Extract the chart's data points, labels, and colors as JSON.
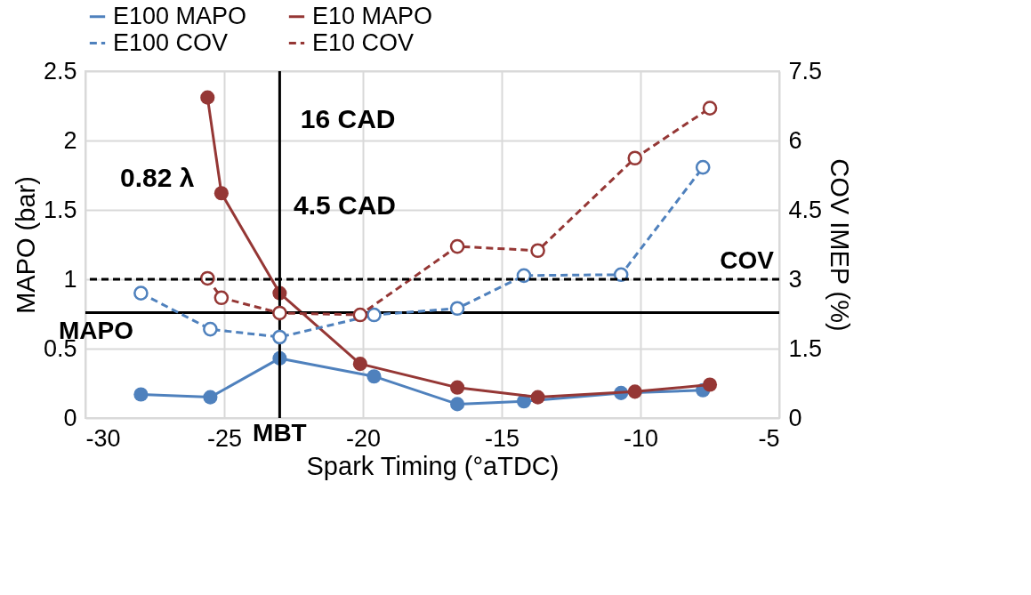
{
  "chart_data": {
    "type": "line",
    "xlabel": "Spark Timing (°aTDC)",
    "ylabel": "MAPO (bar)",
    "y2label": "COV IMEP  (%)",
    "xlim": [
      -30,
      -5
    ],
    "xticks": [
      -30,
      -25,
      -20,
      -15,
      -10,
      -5
    ],
    "ylim": [
      0,
      2.5
    ],
    "yticks": [
      0,
      0.5,
      1,
      1.5,
      2,
      2.5
    ],
    "y2lim": [
      0,
      7.5
    ],
    "y2ticks": [
      0,
      1.5,
      3,
      4.5,
      6,
      7.5
    ],
    "grid": true,
    "legend": "top",
    "marker": "circle",
    "series": [
      {
        "name": "E100 MAPO",
        "color": "#4f81bd",
        "line_style": "solid",
        "x": [
          -28,
          -25.5,
          -23,
          -19.6,
          -16.6,
          -14.2,
          -10.7,
          -7.75
        ],
        "values": [
          0.17,
          0.15,
          0.43,
          0.3,
          0.1,
          0.12,
          0.18,
          0.2
        ]
      },
      {
        "name": "E10 MAPO",
        "color": "#953735",
        "line_style": "solid",
        "x": [
          -25.6,
          -25.1,
          -23,
          -20.1,
          -16.6,
          -13.7,
          -10.2,
          -7.5
        ],
        "values": [
          2.31,
          1.62,
          0.9,
          0.39,
          0.22,
          0.15,
          0.19,
          0.24
        ]
      },
      {
        "name": "E100 COV",
        "color": "#4f81bd",
        "line_style": "dashed",
        "axis": "y2",
        "x": [
          -28,
          -25.5,
          -23,
          -19.6,
          -16.6,
          -14.2,
          -10.7,
          -7.75
        ],
        "values": [
          2.7,
          1.92,
          1.75,
          2.23,
          2.37,
          3.08,
          3.1,
          5.42
        ]
      },
      {
        "name": "E10 COV",
        "color": "#953735",
        "line_style": "dashed",
        "axis": "y2",
        "x": [
          -25.6,
          -25.1,
          -23,
          -20.1,
          -16.6,
          -13.7,
          -10.2,
          -7.5
        ],
        "values": [
          3.02,
          2.6,
          2.27,
          2.23,
          3.71,
          3.62,
          5.62,
          6.7
        ]
      }
    ],
    "ref_lines": [
      {
        "axis": "y",
        "value": 0.76,
        "label": "MAPO",
        "color": "#000000",
        "line_style": "solid"
      },
      {
        "axis": "y2",
        "value": 3,
        "label": "COV",
        "color": "#000000",
        "line_style": "dashed"
      },
      {
        "axis": "x",
        "value": -23,
        "label": "MBT",
        "color": "#000000",
        "line_style": "solid"
      }
    ],
    "annotations": [
      "16 CAD",
      "0.82 λ",
      "4.5 CAD"
    ]
  }
}
